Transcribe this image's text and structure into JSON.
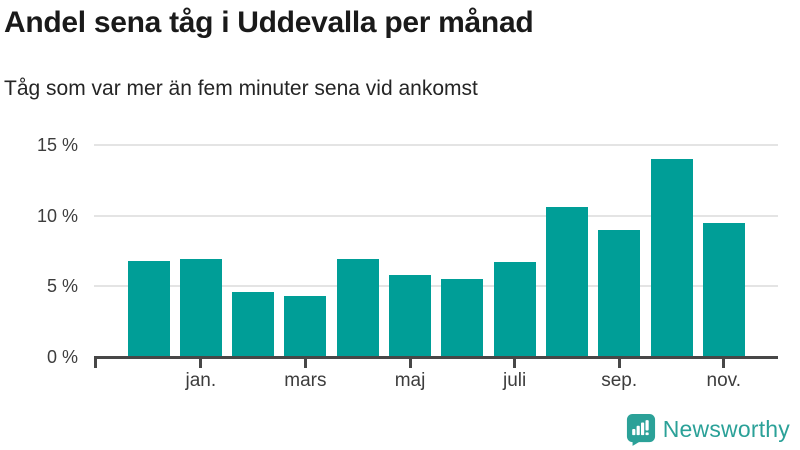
{
  "header": {
    "title": "Andel sena tåg i Uddevalla per månad",
    "subtitle": "Tåg som var mer än fem minuter sena vid ankomst"
  },
  "chart_data": {
    "type": "bar",
    "title": "Andel sena tåg i Uddevalla per månad",
    "subtitle": "Tåg som var mer än fem minuter sena vid ankomst",
    "unit": "percent of late trains (>5 min) per month",
    "values": [
      6.8,
      6.9,
      4.6,
      4.3,
      6.9,
      5.8,
      5.5,
      6.7,
      10.6,
      9.0,
      14.0,
      9.5
    ],
    "x_tick_labels": [
      "jan.",
      "mars",
      "maj",
      "juli",
      "sep.",
      "nov."
    ],
    "x_tick_value_indices": [
      1,
      3,
      5,
      7,
      9,
      11
    ],
    "y_tick_values": [
      0,
      5,
      10,
      15
    ],
    "y_tick_labels": [
      "0 %",
      "5 %",
      "10 %",
      "15 %"
    ],
    "ylim": [
      0,
      15
    ],
    "grid": "horizontal",
    "legend": "none",
    "bar_color": "#009e97"
  },
  "colors": {
    "bar": "#009e97",
    "gridline": "#e4e4e4",
    "axis": "#474747",
    "axis_text": "#3d3d3d",
    "title_text": "#1a1a1a",
    "brand": "#2ba198"
  },
  "footer": {
    "brand": "Newsworthy",
    "logo_icon": "speech-bubble-bar-chart"
  }
}
